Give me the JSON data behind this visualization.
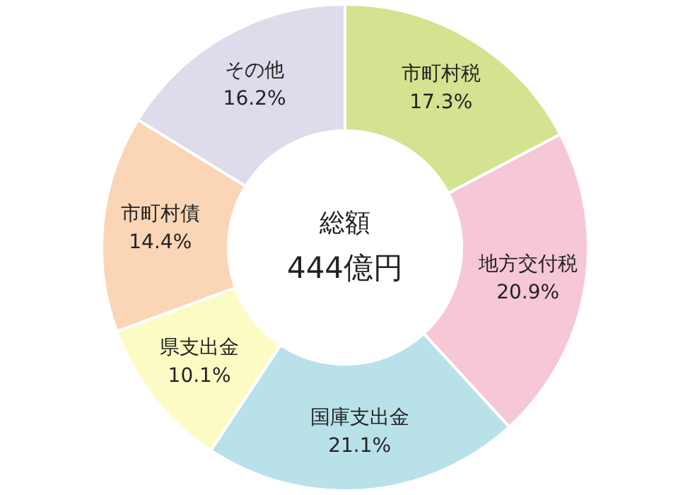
{
  "chart_data": {
    "type": "donut",
    "categories": [
      "市町村税",
      "地方交付税",
      "国庫支出金",
      "県支出金",
      "市町村債",
      "その他"
    ],
    "values": [
      17.3,
      20.9,
      21.1,
      10.1,
      14.4,
      16.2
    ],
    "colors": [
      "#d3e38f",
      "#f6c7d6",
      "#b9e1ea",
      "#fdfbc4",
      "#fad6b6",
      "#dedbeb"
    ],
    "value_labels": [
      "17.3%",
      "20.9%",
      "21.1%",
      "10.1%",
      "14.4%",
      "16.2%"
    ],
    "annotations": [
      "総額",
      "444億円"
    ],
    "legend": false
  }
}
